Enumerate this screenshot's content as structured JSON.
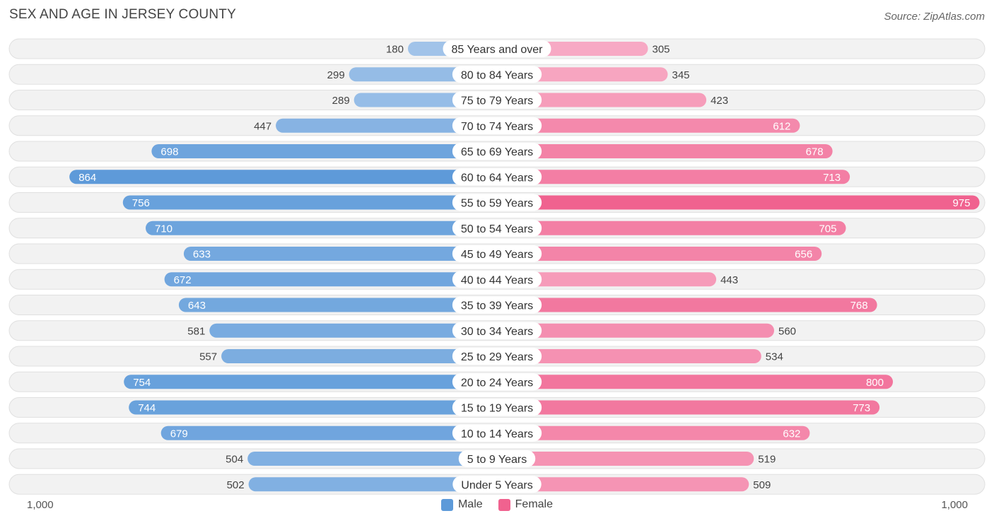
{
  "title": "SEX AND AGE IN JERSEY COUNTY",
  "source": "Source: ZipAtlas.com",
  "axis": {
    "left_label": "1,000",
    "right_label": "1,000"
  },
  "legend": {
    "male": "Male",
    "female": "Female"
  },
  "colors": {
    "male_light": "#a4c5ea",
    "male_dark": "#5d9ad9",
    "female_light": "#f7aac4",
    "female_dark": "#f0628f",
    "row_bg": "#f2f2f2",
    "row_border": "#e0e0e0"
  },
  "chart_data": {
    "type": "bar",
    "orientation": "horizontal-diverging",
    "title": "SEX AND AGE IN JERSEY COUNTY",
    "xlim": [
      -1000,
      1000
    ],
    "categories": [
      "85 Years and over",
      "80 to 84 Years",
      "75 to 79 Years",
      "70 to 74 Years",
      "65 to 69 Years",
      "60 to 64 Years",
      "55 to 59 Years",
      "50 to 54 Years",
      "45 to 49 Years",
      "40 to 44 Years",
      "35 to 39 Years",
      "30 to 34 Years",
      "25 to 29 Years",
      "20 to 24 Years",
      "15 to 19 Years",
      "10 to 14 Years",
      "5 to 9 Years",
      "Under 5 Years"
    ],
    "series": [
      {
        "name": "Male",
        "values": [
          180,
          299,
          289,
          447,
          698,
          864,
          756,
          710,
          633,
          672,
          643,
          581,
          557,
          754,
          744,
          679,
          504,
          502
        ]
      },
      {
        "name": "Female",
        "values": [
          305,
          345,
          423,
          612,
          678,
          713,
          975,
          705,
          656,
          443,
          768,
          560,
          534,
          800,
          773,
          632,
          519,
          509
        ]
      }
    ]
  }
}
